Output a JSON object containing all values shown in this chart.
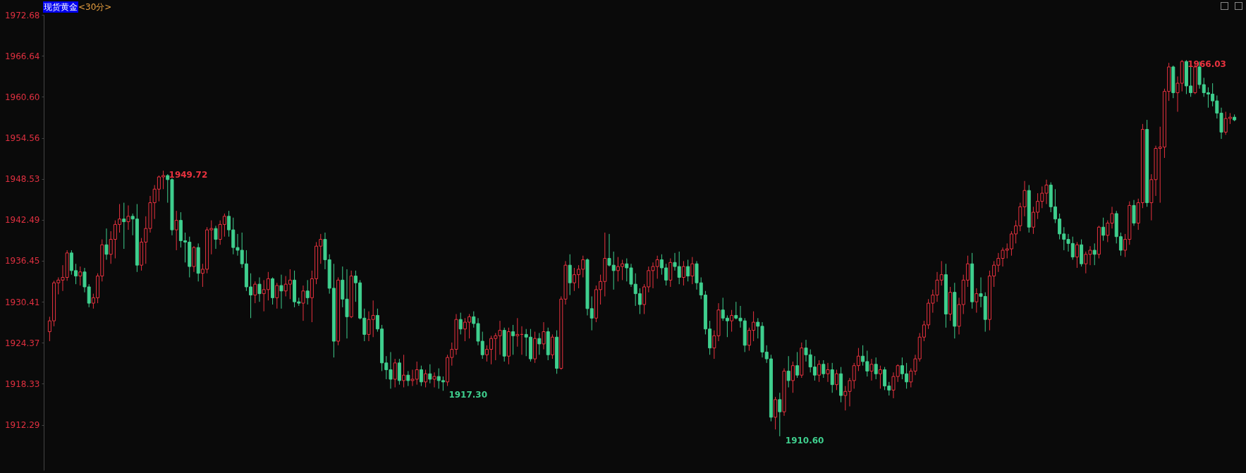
{
  "chart_data": {
    "type": "candlestick",
    "title": "现货黄金",
    "subtitle": "<30分>",
    "categories": [
      null,
      null,
      null,
      null,
      null,
      null,
      null,
      null,
      null,
      null,
      null,
      null,
      null,
      null,
      null,
      null,
      null,
      null,
      null,
      null,
      null,
      null,
      null,
      null,
      null,
      null,
      null,
      null,
      null,
      null,
      null,
      null,
      null,
      null,
      null,
      null,
      null,
      null,
      null,
      null,
      null,
      null,
      null,
      null,
      null,
      null,
      null,
      null,
      null,
      null,
      null,
      null,
      null,
      null,
      null,
      null,
      null,
      null,
      null,
      null,
      null,
      null,
      null,
      null,
      null,
      null,
      null,
      null,
      null,
      null,
      null,
      null,
      null,
      null,
      null,
      null,
      null,
      null,
      null,
      null,
      null,
      null,
      null,
      null,
      null,
      null,
      null,
      null,
      null,
      null,
      null,
      null,
      null,
      null,
      null,
      null,
      null,
      null,
      null,
      null,
      null,
      null,
      null,
      null,
      null,
      null,
      null,
      null,
      null,
      null,
      null,
      null,
      null,
      null,
      null,
      null,
      null,
      null,
      null,
      null,
      null,
      null,
      null,
      null,
      null,
      null,
      null,
      null,
      null,
      null,
      null,
      null,
      null,
      null,
      null,
      null,
      null,
      null,
      null,
      null,
      null,
      null,
      null,
      null,
      null,
      null,
      null,
      null,
      null,
      null,
      null,
      null,
      null,
      null,
      null,
      null,
      null,
      null,
      null,
      null,
      null,
      null,
      null,
      null,
      null,
      null,
      null,
      null,
      null,
      null,
      null,
      null,
      null,
      null,
      null,
      null,
      null,
      null,
      null,
      null,
      null,
      null,
      null,
      null,
      null,
      null,
      null,
      null,
      null,
      null,
      null,
      null,
      null,
      null,
      null,
      null,
      null,
      null,
      null,
      null,
      null,
      null,
      null,
      null,
      null,
      null,
      null,
      null,
      null,
      null,
      null,
      null,
      null,
      null,
      null,
      null,
      null,
      null,
      null,
      null,
      null,
      null,
      null,
      null,
      null,
      null,
      null,
      null,
      null,
      null,
      null,
      null,
      null,
      null,
      null,
      null,
      null,
      null,
      null,
      null,
      null,
      null,
      null,
      null,
      null,
      null,
      null,
      null,
      null,
      null,
      null,
      null,
      null,
      null,
      null,
      null,
      null,
      null,
      null,
      null,
      null,
      null,
      null,
      null,
      null,
      null,
      null,
      null,
      null,
      null,
      null,
      null
    ],
    "ohlc": [
      [
        1926.0,
        1928.2,
        1924.6,
        1927.6
      ],
      [
        1927.6,
        1933.5,
        1926.8,
        1933.2
      ],
      [
        1933.2,
        1934.0,
        1931.5,
        1933.6
      ],
      [
        1933.6,
        1935.8,
        1932.0,
        1934.0
      ],
      [
        1934.0,
        1938.0,
        1933.5,
        1937.6
      ],
      [
        1937.6,
        1938.0,
        1934.4,
        1935.0
      ],
      [
        1935.0,
        1936.0,
        1933.0,
        1934.2
      ],
      [
        1934.2,
        1935.6,
        1932.8,
        1934.8
      ],
      [
        1934.8,
        1935.4,
        1931.8,
        1932.6
      ],
      [
        1932.6,
        1933.0,
        1929.6,
        1930.2
      ],
      [
        1930.2,
        1931.6,
        1929.4,
        1931.0
      ],
      [
        1931.0,
        1934.6,
        1930.2,
        1934.2
      ],
      [
        1934.2,
        1939.6,
        1933.4,
        1938.8
      ],
      [
        1938.8,
        1941.2,
        1936.6,
        1937.4
      ],
      [
        1937.4,
        1940.8,
        1936.0,
        1939.6
      ],
      [
        1939.6,
        1942.4,
        1936.8,
        1941.8
      ],
      [
        1941.8,
        1944.8,
        1940.6,
        1942.6
      ],
      [
        1942.6,
        1945.0,
        1938.2,
        1942.2
      ],
      [
        1942.2,
        1944.6,
        1941.0,
        1943.0
      ],
      [
        1943.0,
        1943.4,
        1940.2,
        1942.6
      ],
      [
        1942.6,
        1944.8,
        1934.8,
        1935.8
      ],
      [
        1935.8,
        1939.8,
        1935.0,
        1939.2
      ],
      [
        1939.2,
        1943.0,
        1936.0,
        1941.2
      ],
      [
        1941.2,
        1946.0,
        1940.6,
        1945.0
      ],
      [
        1945.0,
        1947.6,
        1942.6,
        1947.0
      ],
      [
        1947.0,
        1949.0,
        1945.2,
        1948.8
      ],
      [
        1948.8,
        1949.72,
        1947.0,
        1949.0
      ],
      [
        1949.0,
        1949.2,
        1945.0,
        1948.4
      ],
      [
        1948.4,
        1948.6,
        1940.2,
        1941.0
      ],
      [
        1941.0,
        1943.8,
        1938.0,
        1942.4
      ],
      [
        1942.4,
        1943.6,
        1938.4,
        1939.4
      ],
      [
        1939.4,
        1940.6,
        1936.2,
        1939.2
      ],
      [
        1939.2,
        1940.0,
        1934.0,
        1935.6
      ],
      [
        1935.6,
        1938.6,
        1934.8,
        1938.4
      ],
      [
        1938.4,
        1939.0,
        1933.4,
        1934.6
      ],
      [
        1934.6,
        1936.0,
        1932.6,
        1935.2
      ],
      [
        1935.2,
        1941.4,
        1934.6,
        1941.0
      ],
      [
        1941.0,
        1942.4,
        1937.4,
        1941.2
      ],
      [
        1941.2,
        1941.6,
        1938.2,
        1939.6
      ],
      [
        1939.6,
        1942.4,
        1938.8,
        1941.8
      ],
      [
        1941.8,
        1943.4,
        1940.0,
        1943.0
      ],
      [
        1943.0,
        1943.8,
        1940.0,
        1941.0
      ],
      [
        1941.0,
        1942.8,
        1937.4,
        1938.4
      ],
      [
        1938.4,
        1940.4,
        1937.2,
        1938.0
      ],
      [
        1938.0,
        1940.6,
        1935.4,
        1936.0
      ],
      [
        1936.0,
        1938.0,
        1932.0,
        1932.6
      ],
      [
        1932.6,
        1934.6,
        1928.0,
        1931.4
      ],
      [
        1931.4,
        1933.4,
        1930.2,
        1933.0
      ],
      [
        1933.0,
        1934.0,
        1930.4,
        1931.6
      ],
      [
        1931.6,
        1933.6,
        1929.0,
        1932.2
      ],
      [
        1932.2,
        1934.8,
        1930.6,
        1933.8
      ],
      [
        1933.8,
        1934.0,
        1930.0,
        1931.0
      ],
      [
        1931.0,
        1933.2,
        1929.4,
        1932.8
      ],
      [
        1932.8,
        1934.4,
        1929.4,
        1932.0
      ],
      [
        1932.0,
        1934.2,
        1931.2,
        1933.0
      ],
      [
        1933.0,
        1935.2,
        1930.8,
        1933.6
      ],
      [
        1933.6,
        1935.0,
        1929.6,
        1930.4
      ],
      [
        1930.4,
        1931.0,
        1929.8,
        1930.2
      ],
      [
        1930.2,
        1932.8,
        1927.6,
        1932.0
      ],
      [
        1932.0,
        1933.6,
        1930.0,
        1931.0
      ],
      [
        1931.0,
        1935.0,
        1927.4,
        1933.8
      ],
      [
        1933.8,
        1939.2,
        1933.0,
        1938.6
      ],
      [
        1938.6,
        1940.4,
        1936.0,
        1939.6
      ],
      [
        1939.6,
        1940.6,
        1935.2,
        1936.6
      ],
      [
        1936.6,
        1937.4,
        1931.6,
        1932.4
      ],
      [
        1932.4,
        1936.0,
        1922.2,
        1924.6
      ],
      [
        1924.6,
        1934.0,
        1924.0,
        1933.6
      ],
      [
        1933.6,
        1935.6,
        1929.6,
        1930.8
      ],
      [
        1930.8,
        1935.2,
        1925.0,
        1928.2
      ],
      [
        1928.2,
        1935.0,
        1928.0,
        1934.2
      ],
      [
        1934.2,
        1935.0,
        1930.4,
        1933.2
      ],
      [
        1933.2,
        1933.6,
        1927.8,
        1928.0
      ],
      [
        1928.0,
        1929.4,
        1924.6,
        1925.6
      ],
      [
        1925.6,
        1929.0,
        1924.6,
        1927.8
      ],
      [
        1927.8,
        1930.6,
        1925.2,
        1928.4
      ],
      [
        1928.4,
        1929.4,
        1926.0,
        1926.4
      ],
      [
        1926.4,
        1927.0,
        1920.2,
        1921.4
      ],
      [
        1921.4,
        1922.4,
        1919.0,
        1920.4
      ],
      [
        1920.4,
        1923.0,
        1917.6,
        1919.0
      ],
      [
        1919.0,
        1922.0,
        1917.8,
        1921.4
      ],
      [
        1921.4,
        1922.0,
        1918.2,
        1918.8
      ],
      [
        1918.8,
        1922.6,
        1917.8,
        1919.6
      ],
      [
        1919.6,
        1920.2,
        1918.0,
        1918.8
      ],
      [
        1918.8,
        1920.4,
        1918.0,
        1919.0
      ],
      [
        1919.0,
        1921.6,
        1918.2,
        1920.4
      ],
      [
        1920.4,
        1921.0,
        1918.0,
        1918.6
      ],
      [
        1918.6,
        1920.4,
        1917.8,
        1919.8
      ],
      [
        1919.8,
        1921.2,
        1918.4,
        1919.0
      ],
      [
        1919.0,
        1920.0,
        1917.8,
        1919.4
      ],
      [
        1919.4,
        1920.6,
        1917.6,
        1918.8
      ],
      [
        1918.8,
        1919.4,
        1917.3,
        1918.6
      ],
      [
        1918.6,
        1922.6,
        1918.0,
        1922.2
      ],
      [
        1922.2,
        1924.4,
        1921.0,
        1923.4
      ],
      [
        1923.4,
        1928.6,
        1922.6,
        1927.8
      ],
      [
        1927.8,
        1928.8,
        1925.6,
        1926.4
      ],
      [
        1926.4,
        1928.0,
        1924.6,
        1927.4
      ],
      [
        1927.4,
        1928.6,
        1925.0,
        1928.2
      ],
      [
        1928.2,
        1929.0,
        1926.6,
        1927.2
      ],
      [
        1927.2,
        1928.0,
        1924.0,
        1924.6
      ],
      [
        1924.6,
        1926.0,
        1922.0,
        1922.6
      ],
      [
        1922.6,
        1924.0,
        1921.6,
        1923.4
      ],
      [
        1923.4,
        1925.4,
        1921.2,
        1925.0
      ],
      [
        1925.0,
        1925.8,
        1921.8,
        1925.4
      ],
      [
        1925.4,
        1927.6,
        1922.6,
        1926.2
      ],
      [
        1926.2,
        1926.6,
        1921.6,
        1922.4
      ],
      [
        1922.4,
        1926.6,
        1921.2,
        1926.0
      ],
      [
        1926.0,
        1927.0,
        1922.6,
        1925.4
      ],
      [
        1925.4,
        1928.0,
        1923.8,
        1925.6
      ],
      [
        1925.6,
        1926.8,
        1922.6,
        1925.6
      ],
      [
        1925.6,
        1926.4,
        1922.4,
        1925.2
      ],
      [
        1925.2,
        1926.4,
        1921.6,
        1922.0
      ],
      [
        1922.0,
        1926.0,
        1921.4,
        1925.0
      ],
      [
        1925.0,
        1925.8,
        1922.6,
        1924.2
      ],
      [
        1924.2,
        1927.4,
        1923.4,
        1926.0
      ],
      [
        1926.0,
        1926.6,
        1921.8,
        1922.6
      ],
      [
        1922.6,
        1925.6,
        1922.0,
        1925.2
      ],
      [
        1925.2,
        1926.2,
        1919.8,
        1920.6
      ],
      [
        1920.6,
        1931.2,
        1920.4,
        1930.8
      ],
      [
        1930.8,
        1936.4,
        1930.0,
        1935.8
      ],
      [
        1935.8,
        1937.4,
        1931.4,
        1933.2
      ],
      [
        1933.2,
        1935.4,
        1932.0,
        1934.4
      ],
      [
        1934.4,
        1935.8,
        1932.4,
        1935.2
      ],
      [
        1935.2,
        1937.2,
        1934.0,
        1936.6
      ],
      [
        1936.6,
        1936.8,
        1928.4,
        1929.4
      ],
      [
        1929.4,
        1931.2,
        1926.2,
        1928.0
      ],
      [
        1928.0,
        1932.8,
        1927.4,
        1932.2
      ],
      [
        1932.2,
        1934.4,
        1930.0,
        1933.4
      ],
      [
        1933.4,
        1940.6,
        1931.2,
        1936.8
      ],
      [
        1936.8,
        1940.4,
        1935.6,
        1935.8
      ],
      [
        1935.8,
        1937.8,
        1932.2,
        1935.0
      ],
      [
        1935.0,
        1937.0,
        1933.4,
        1935.6
      ],
      [
        1935.6,
        1936.6,
        1933.6,
        1936.0
      ],
      [
        1936.0,
        1936.8,
        1933.4,
        1935.4
      ],
      [
        1935.4,
        1936.0,
        1932.6,
        1933.0
      ],
      [
        1933.0,
        1934.6,
        1929.8,
        1931.6
      ],
      [
        1931.6,
        1932.4,
        1928.6,
        1930.0
      ],
      [
        1930.0,
        1933.0,
        1928.6,
        1932.6
      ],
      [
        1932.6,
        1935.6,
        1931.8,
        1935.0
      ],
      [
        1935.0,
        1936.2,
        1932.4,
        1935.6
      ],
      [
        1935.6,
        1937.2,
        1933.8,
        1936.6
      ],
      [
        1936.6,
        1937.4,
        1934.4,
        1935.4
      ],
      [
        1935.4,
        1936.0,
        1932.8,
        1933.6
      ],
      [
        1933.6,
        1936.8,
        1932.6,
        1936.2
      ],
      [
        1936.2,
        1937.6,
        1935.0,
        1935.6
      ],
      [
        1935.6,
        1937.8,
        1933.0,
        1934.0
      ],
      [
        1934.0,
        1936.4,
        1932.8,
        1935.6
      ],
      [
        1935.6,
        1936.6,
        1933.4,
        1934.2
      ],
      [
        1934.2,
        1937.0,
        1933.0,
        1936.0
      ],
      [
        1936.0,
        1936.4,
        1932.2,
        1933.2
      ],
      [
        1933.2,
        1934.0,
        1930.8,
        1931.4
      ],
      [
        1931.4,
        1932.0,
        1925.6,
        1926.4
      ],
      [
        1926.4,
        1927.6,
        1922.6,
        1923.6
      ],
      [
        1923.6,
        1926.2,
        1922.0,
        1925.4
      ],
      [
        1925.4,
        1930.2,
        1924.6,
        1929.2
      ],
      [
        1929.2,
        1931.0,
        1927.6,
        1928.0
      ],
      [
        1928.0,
        1928.4,
        1925.2,
        1927.6
      ],
      [
        1927.6,
        1929.2,
        1926.0,
        1928.4
      ],
      [
        1928.4,
        1930.4,
        1927.8,
        1928.0
      ],
      [
        1928.0,
        1929.8,
        1926.6,
        1927.6
      ],
      [
        1927.6,
        1928.0,
        1923.0,
        1924.0
      ],
      [
        1924.0,
        1926.6,
        1923.2,
        1926.2
      ],
      [
        1926.2,
        1929.0,
        1924.6,
        1927.4
      ],
      [
        1927.4,
        1928.0,
        1925.0,
        1926.8
      ],
      [
        1926.8,
        1927.4,
        1922.2,
        1923.0
      ],
      [
        1923.0,
        1924.0,
        1921.4,
        1922.0
      ],
      [
        1922.0,
        1922.6,
        1912.8,
        1913.4
      ],
      [
        1913.4,
        1916.4,
        1911.6,
        1916.0
      ],
      [
        1916.0,
        1917.0,
        1910.6,
        1914.2
      ],
      [
        1914.2,
        1920.6,
        1913.6,
        1920.2
      ],
      [
        1920.2,
        1922.4,
        1917.8,
        1918.8
      ],
      [
        1918.8,
        1921.6,
        1917.0,
        1921.0
      ],
      [
        1921.0,
        1923.0,
        1919.2,
        1919.6
      ],
      [
        1919.6,
        1924.4,
        1919.2,
        1923.6
      ],
      [
        1923.6,
        1924.8,
        1921.6,
        1922.6
      ],
      [
        1922.6,
        1923.4,
        1920.0,
        1920.8
      ],
      [
        1920.8,
        1922.4,
        1918.8,
        1919.6
      ],
      [
        1919.6,
        1921.8,
        1918.6,
        1921.2
      ],
      [
        1921.2,
        1921.8,
        1919.2,
        1919.8
      ],
      [
        1919.8,
        1921.4,
        1918.6,
        1920.4
      ],
      [
        1920.4,
        1921.4,
        1917.0,
        1918.2
      ],
      [
        1918.2,
        1920.4,
        1917.4,
        1919.8
      ],
      [
        1919.8,
        1920.8,
        1915.6,
        1916.6
      ],
      [
        1916.6,
        1918.0,
        1914.4,
        1917.2
      ],
      [
        1917.2,
        1919.2,
        1915.0,
        1918.8
      ],
      [
        1918.8,
        1921.4,
        1917.6,
        1921.0
      ],
      [
        1921.0,
        1923.6,
        1920.2,
        1922.4
      ],
      [
        1922.4,
        1924.0,
        1921.0,
        1921.6
      ],
      [
        1921.6,
        1923.2,
        1919.4,
        1920.2
      ],
      [
        1920.2,
        1922.0,
        1918.8,
        1921.2
      ],
      [
        1921.2,
        1922.2,
        1919.0,
        1919.8
      ],
      [
        1919.8,
        1921.0,
        1917.6,
        1920.4
      ],
      [
        1920.4,
        1920.8,
        1917.4,
        1918.0
      ],
      [
        1918.0,
        1918.6,
        1916.6,
        1917.4
      ],
      [
        1917.4,
        1920.0,
        1916.2,
        1919.4
      ],
      [
        1919.4,
        1921.2,
        1918.6,
        1921.0
      ],
      [
        1921.0,
        1922.2,
        1919.0,
        1919.8
      ],
      [
        1919.8,
        1921.4,
        1917.6,
        1918.6
      ],
      [
        1918.6,
        1920.6,
        1917.8,
        1920.2
      ],
      [
        1920.2,
        1922.6,
        1919.6,
        1922.0
      ],
      [
        1922.0,
        1925.8,
        1921.6,
        1925.2
      ],
      [
        1925.2,
        1927.6,
        1924.6,
        1927.0
      ],
      [
        1927.0,
        1930.8,
        1926.4,
        1930.2
      ],
      [
        1930.2,
        1932.2,
        1928.8,
        1931.4
      ],
      [
        1931.4,
        1934.8,
        1930.4,
        1933.6
      ],
      [
        1933.6,
        1936.4,
        1932.8,
        1934.4
      ],
      [
        1934.4,
        1936.0,
        1926.6,
        1928.6
      ],
      [
        1928.6,
        1932.6,
        1927.6,
        1931.8
      ],
      [
        1931.8,
        1933.2,
        1925.0,
        1926.8
      ],
      [
        1926.8,
        1931.0,
        1925.6,
        1930.0
      ],
      [
        1930.0,
        1934.4,
        1928.6,
        1933.6
      ],
      [
        1933.6,
        1937.2,
        1932.6,
        1936.0
      ],
      [
        1936.0,
        1937.6,
        1929.4,
        1930.4
      ],
      [
        1930.4,
        1932.4,
        1928.8,
        1931.6
      ],
      [
        1931.6,
        1934.0,
        1929.6,
        1931.2
      ],
      [
        1931.2,
        1931.8,
        1926.0,
        1927.8
      ],
      [
        1927.8,
        1935.0,
        1926.2,
        1934.2
      ],
      [
        1934.2,
        1936.4,
        1932.6,
        1935.8
      ],
      [
        1935.8,
        1937.6,
        1934.8,
        1936.8
      ],
      [
        1936.8,
        1938.4,
        1935.6,
        1938.0
      ],
      [
        1938.0,
        1939.0,
        1936.8,
        1938.2
      ],
      [
        1938.2,
        1940.8,
        1937.2,
        1940.4
      ],
      [
        1940.4,
        1942.4,
        1939.0,
        1941.6
      ],
      [
        1941.6,
        1945.0,
        1940.8,
        1944.4
      ],
      [
        1944.4,
        1948.2,
        1943.0,
        1946.8
      ],
      [
        1946.8,
        1947.6,
        1940.6,
        1941.4
      ],
      [
        1941.4,
        1944.4,
        1940.4,
        1943.6
      ],
      [
        1943.6,
        1946.4,
        1942.6,
        1945.2
      ],
      [
        1945.2,
        1947.4,
        1944.2,
        1946.4
      ],
      [
        1946.4,
        1948.4,
        1944.8,
        1947.6
      ],
      [
        1947.6,
        1948.0,
        1943.6,
        1944.4
      ],
      [
        1944.4,
        1947.0,
        1942.0,
        1942.6
      ],
      [
        1942.6,
        1943.4,
        1939.6,
        1940.4
      ],
      [
        1940.4,
        1941.4,
        1938.0,
        1939.6
      ],
      [
        1939.6,
        1940.4,
        1937.8,
        1939.0
      ],
      [
        1939.0,
        1940.0,
        1936.6,
        1937.0
      ],
      [
        1937.0,
        1939.2,
        1935.4,
        1938.8
      ],
      [
        1938.8,
        1939.6,
        1935.6,
        1936.0
      ],
      [
        1936.0,
        1937.8,
        1934.6,
        1937.4
      ],
      [
        1937.4,
        1938.6,
        1935.8,
        1938.0
      ],
      [
        1938.0,
        1939.0,
        1935.8,
        1937.4
      ],
      [
        1937.4,
        1941.6,
        1936.8,
        1941.4
      ],
      [
        1941.4,
        1942.8,
        1939.4,
        1940.2
      ],
      [
        1940.2,
        1942.4,
        1939.2,
        1942.0
      ],
      [
        1942.0,
        1944.4,
        1941.2,
        1943.4
      ],
      [
        1943.4,
        1943.8,
        1939.0,
        1940.0
      ],
      [
        1940.0,
        1940.6,
        1937.2,
        1938.0
      ],
      [
        1938.0,
        1940.4,
        1937.0,
        1939.6
      ],
      [
        1939.6,
        1945.2,
        1938.8,
        1944.6
      ],
      [
        1944.6,
        1945.4,
        1941.6,
        1942.0
      ],
      [
        1942.0,
        1945.6,
        1941.0,
        1945.0
      ],
      [
        1945.0,
        1956.6,
        1944.2,
        1955.8
      ],
      [
        1955.8,
        1957.2,
        1944.4,
        1945.0
      ],
      [
        1945.0,
        1949.2,
        1942.4,
        1948.4
      ],
      [
        1948.4,
        1953.4,
        1946.0,
        1953.0
      ],
      [
        1953.0,
        1956.2,
        1945.0,
        1953.2
      ],
      [
        1953.2,
        1961.8,
        1951.6,
        1961.4
      ],
      [
        1961.4,
        1965.6,
        1960.0,
        1965.0
      ],
      [
        1965.0,
        1965.2,
        1960.4,
        1961.2
      ],
      [
        1961.2,
        1963.6,
        1958.4,
        1962.6
      ],
      [
        1962.6,
        1966.03,
        1961.4,
        1965.8
      ],
      [
        1965.8,
        1966.0,
        1961.0,
        1962.2
      ],
      [
        1962.2,
        1965.2,
        1960.6,
        1961.2
      ],
      [
        1961.2,
        1965.6,
        1961.0,
        1965.0
      ],
      [
        1965.0,
        1965.8,
        1961.8,
        1962.4
      ],
      [
        1962.4,
        1963.4,
        1960.6,
        1961.2
      ],
      [
        1961.2,
        1962.0,
        1959.0,
        1961.0
      ],
      [
        1961.0,
        1962.6,
        1959.2,
        1960.0
      ],
      [
        1960.0,
        1960.8,
        1957.4,
        1958.2
      ],
      [
        1958.2,
        1959.0,
        1954.4,
        1955.4
      ],
      [
        1955.4,
        1958.4,
        1955.0,
        1957.4
      ],
      [
        1957.4,
        1958.2,
        1956.6,
        1957.6
      ],
      [
        1957.6,
        1958.0,
        1957.0,
        1957.2
      ]
    ],
    "ylim": [
      1905.6,
      1972.68
    ],
    "yticks": [
      1912.29,
      1918.33,
      1924.37,
      1930.41,
      1936.45,
      1942.49,
      1948.53,
      1954.56,
      {
        "value": 1960.6,
        "label": "1960.60"
      },
      1966.64,
      1972.68
    ],
    "tick_labels": "y",
    "annotations": [
      "1949.72",
      "1917.30",
      "1910.60",
      "1966.03"
    ]
  }
}
